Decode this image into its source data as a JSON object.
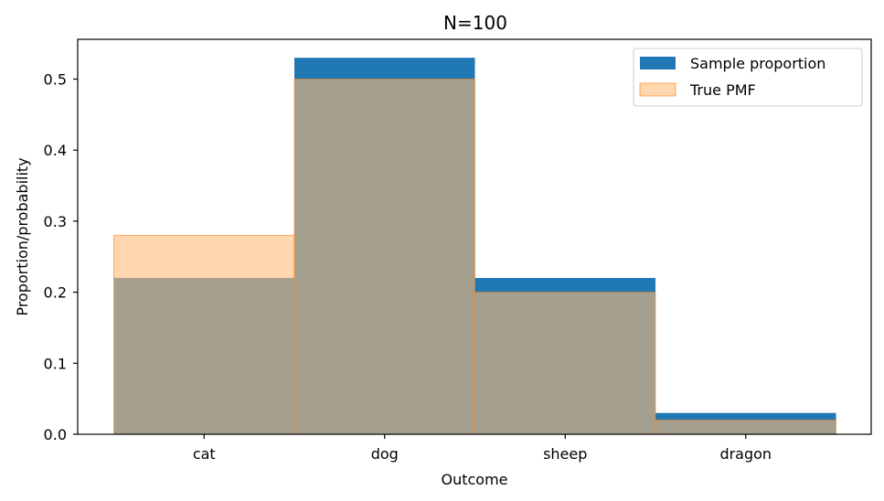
{
  "chart_data": {
    "type": "bar",
    "title": "N=100",
    "xlabel": "Outcome",
    "ylabel": "Proportion/probability",
    "categories": [
      "cat",
      "dog",
      "sheep",
      "dragon"
    ],
    "ylim": [
      0,
      0.556
    ],
    "yticks": [
      "0.0",
      "0.1",
      "0.2",
      "0.3",
      "0.4",
      "0.5"
    ],
    "legend_position": "top-right",
    "grid": false,
    "series": [
      {
        "name": "Sample proportion",
        "values": [
          0.22,
          0.53,
          0.22,
          0.03
        ],
        "color": "#1f77b4"
      },
      {
        "name": "True PMF",
        "values": [
          0.28,
          0.5,
          0.2,
          0.02
        ],
        "color": "#ffbb78",
        "edge_color": "#ff7f0e"
      }
    ]
  }
}
